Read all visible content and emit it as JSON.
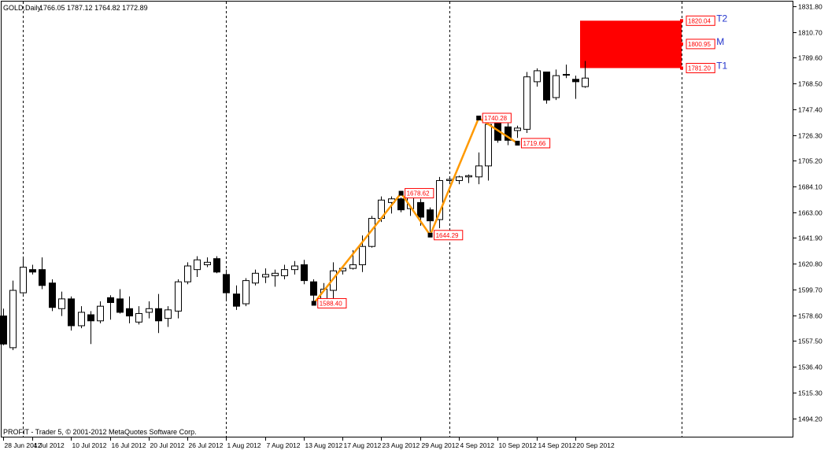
{
  "header": {
    "symbol": "GOLD,Daily",
    "ohlc": "1766.05 1787.12 1764.82 1772.89"
  },
  "footer": {
    "copyright": "PROFIT - Trader 5, © 2001-2012 MetaQuotes Software Corp."
  },
  "colors": {
    "background": "#ffffff",
    "bull_candle": "#ffffff",
    "bear_candle": "#000000",
    "wave_line": "#ff9900",
    "target_zone": "#ff0000",
    "point_label": "#ff0000",
    "target_text": "#2233cc",
    "separator": "#000000"
  },
  "chart_data": {
    "type": "candlestick",
    "y_axis": {
      "min": 1478.4,
      "max": 1837.0,
      "ticks": [
        1831.8,
        1810.7,
        1789.6,
        1768.5,
        1747.4,
        1726.3,
        1705.2,
        1684.1,
        1663.0,
        1641.9,
        1620.8,
        1599.7,
        1578.6,
        1557.5,
        1536.4,
        1515.3,
        1494.2
      ],
      "tick_labels": [
        "1831.80",
        "1810.70",
        "1789.60",
        "1768.50",
        "1747.40",
        "1726.30",
        "1705.20",
        "1684.10",
        "1663.00",
        "1641.90",
        "1620.80",
        "1599.70",
        "1578.60",
        "1557.50",
        "1536.40",
        "1515.30",
        "1494.20"
      ]
    },
    "x_axis": {
      "labels": [
        {
          "index": 0,
          "text": "28 Jun 2012"
        },
        {
          "index": 3,
          "text": "4 Jul 2012"
        },
        {
          "index": 7,
          "text": "10 Jul 2012"
        },
        {
          "index": 11,
          "text": "16 Jul 2012"
        },
        {
          "index": 15,
          "text": "20 Jul 2012"
        },
        {
          "index": 19,
          "text": "26 Jul 2012"
        },
        {
          "index": 23,
          "text": "1 Aug 2012"
        },
        {
          "index": 27,
          "text": "7 Aug 2012"
        },
        {
          "index": 31,
          "text": "13 Aug 2012"
        },
        {
          "index": 35,
          "text": "17 Aug 2012"
        },
        {
          "index": 39,
          "text": "23 Aug 2012"
        },
        {
          "index": 43,
          "text": "29 Aug 2012"
        },
        {
          "index": 47,
          "text": "4 Sep 2012"
        },
        {
          "index": 51,
          "text": "10 Sep 2012"
        },
        {
          "index": 55,
          "text": "14 Sep 2012"
        },
        {
          "index": 59,
          "text": "20 Sep 2012"
        }
      ],
      "month_separators": [
        2,
        23,
        46
      ],
      "future_separator": 70
    },
    "candles": [
      {
        "o": 1578,
        "h": 1584,
        "l": 1554,
        "c": 1555
      },
      {
        "o": 1552,
        "h": 1607,
        "l": 1550,
        "c": 1599
      },
      {
        "o": 1597,
        "h": 1625,
        "l": 1596,
        "c": 1618
      },
      {
        "o": 1616,
        "h": 1620,
        "l": 1612,
        "c": 1614
      },
      {
        "o": 1616,
        "h": 1626,
        "l": 1600,
        "c": 1603
      },
      {
        "o": 1605,
        "h": 1608,
        "l": 1582,
        "c": 1585
      },
      {
        "o": 1584,
        "h": 1598,
        "l": 1578,
        "c": 1592
      },
      {
        "o": 1592,
        "h": 1594,
        "l": 1566,
        "c": 1570
      },
      {
        "o": 1570,
        "h": 1586,
        "l": 1568,
        "c": 1581
      },
      {
        "o": 1579,
        "h": 1582,
        "l": 1555,
        "c": 1574
      },
      {
        "o": 1574,
        "h": 1590,
        "l": 1572,
        "c": 1586
      },
      {
        "o": 1593,
        "h": 1595,
        "l": 1575,
        "c": 1589
      },
      {
        "o": 1592,
        "h": 1600,
        "l": 1580,
        "c": 1581
      },
      {
        "o": 1584,
        "h": 1594,
        "l": 1572,
        "c": 1578
      },
      {
        "o": 1573,
        "h": 1586,
        "l": 1571,
        "c": 1580
      },
      {
        "o": 1581,
        "h": 1590,
        "l": 1576,
        "c": 1584
      },
      {
        "o": 1584,
        "h": 1596,
        "l": 1564,
        "c": 1574
      },
      {
        "o": 1576,
        "h": 1586,
        "l": 1569,
        "c": 1583
      },
      {
        "o": 1582,
        "h": 1608,
        "l": 1576,
        "c": 1606
      },
      {
        "o": 1606,
        "h": 1622,
        "l": 1604,
        "c": 1619
      },
      {
        "o": 1616,
        "h": 1627,
        "l": 1610,
        "c": 1624
      },
      {
        "o": 1620,
        "h": 1626,
        "l": 1618,
        "c": 1622
      },
      {
        "o": 1625,
        "h": 1627,
        "l": 1613,
        "c": 1614
      },
      {
        "o": 1612,
        "h": 1616,
        "l": 1591,
        "c": 1597
      },
      {
        "o": 1596,
        "h": 1603,
        "l": 1583,
        "c": 1586
      },
      {
        "o": 1588,
        "h": 1609,
        "l": 1586,
        "c": 1607
      },
      {
        "o": 1605,
        "h": 1616,
        "l": 1603,
        "c": 1613
      },
      {
        "o": 1610,
        "h": 1617,
        "l": 1605,
        "c": 1612
      },
      {
        "o": 1611,
        "h": 1616,
        "l": 1602,
        "c": 1613
      },
      {
        "o": 1611,
        "h": 1620,
        "l": 1608,
        "c": 1616
      },
      {
        "o": 1616,
        "h": 1623,
        "l": 1612,
        "c": 1619
      },
      {
        "o": 1620,
        "h": 1624,
        "l": 1604,
        "c": 1607
      },
      {
        "o": 1606,
        "h": 1608,
        "l": 1590,
        "c": 1595
      },
      {
        "o": 1589,
        "h": 1605,
        "l": 1587,
        "c": 1600
      },
      {
        "o": 1599,
        "h": 1622,
        "l": 1592,
        "c": 1615
      },
      {
        "o": 1615,
        "h": 1619,
        "l": 1612,
        "c": 1617
      },
      {
        "o": 1617,
        "h": 1632,
        "l": 1616,
        "c": 1620
      },
      {
        "o": 1620,
        "h": 1644,
        "l": 1614,
        "c": 1635
      },
      {
        "o": 1635,
        "h": 1660,
        "l": 1634,
        "c": 1658
      },
      {
        "o": 1658,
        "h": 1676,
        "l": 1655,
        "c": 1673
      },
      {
        "o": 1671,
        "h": 1676,
        "l": 1662,
        "c": 1674
      },
      {
        "o": 1674,
        "h": 1675,
        "l": 1663,
        "c": 1665
      },
      {
        "o": 1666,
        "h": 1680,
        "l": 1660,
        "c": 1677
      },
      {
        "o": 1671,
        "h": 1674,
        "l": 1652,
        "c": 1659
      },
      {
        "o": 1665,
        "h": 1667,
        "l": 1647,
        "c": 1656
      },
      {
        "o": 1657,
        "h": 1692,
        "l": 1650,
        "c": 1689
      },
      {
        "o": 1689,
        "h": 1692,
        "l": 1686,
        "c": 1690
      },
      {
        "o": 1689,
        "h": 1693,
        "l": 1686,
        "c": 1692
      },
      {
        "o": 1692,
        "h": 1694,
        "l": 1687,
        "c": 1693
      },
      {
        "o": 1692,
        "h": 1712,
        "l": 1686,
        "c": 1701
      },
      {
        "o": 1701,
        "h": 1738,
        "l": 1689,
        "c": 1735
      },
      {
        "o": 1736,
        "h": 1740,
        "l": 1720,
        "c": 1722
      },
      {
        "o": 1733,
        "h": 1736,
        "l": 1718,
        "c": 1722
      },
      {
        "o": 1730,
        "h": 1734,
        "l": 1724,
        "c": 1732
      },
      {
        "o": 1731,
        "h": 1778,
        "l": 1728,
        "c": 1774
      },
      {
        "o": 1770,
        "h": 1781,
        "l": 1766,
        "c": 1779
      },
      {
        "o": 1778,
        "h": 1778,
        "l": 1752,
        "c": 1755
      },
      {
        "o": 1757,
        "h": 1780,
        "l": 1755,
        "c": 1775
      },
      {
        "o": 1776,
        "h": 1784,
        "l": 1773,
        "c": 1776
      },
      {
        "o": 1772,
        "h": 1775,
        "l": 1756,
        "c": 1770
      },
      {
        "o": 1766,
        "h": 1787,
        "l": 1765,
        "c": 1773
      }
    ],
    "wave": [
      {
        "index": 32,
        "price": 1588.4,
        "label": "1588.40"
      },
      {
        "index": 41,
        "price": 1678.62,
        "label": "1678.62"
      },
      {
        "index": 44,
        "price": 1644.29,
        "label": "1644.29"
      },
      {
        "index": 49,
        "price": 1740.28,
        "label": "1740.28"
      },
      {
        "index": 53,
        "price": 1719.66,
        "label": "1719.66"
      }
    ],
    "target_zone": {
      "start_index": 59.5,
      "end_index": 70,
      "top": 1820.04,
      "bottom": 1781.2
    },
    "targets": [
      {
        "name": "T2",
        "price": 1820.04,
        "label": "1820.04"
      },
      {
        "name": "M",
        "price": 1800.95,
        "label": "1800.95"
      },
      {
        "name": "T1",
        "price": 1781.2,
        "label": "1781.20"
      }
    ]
  }
}
